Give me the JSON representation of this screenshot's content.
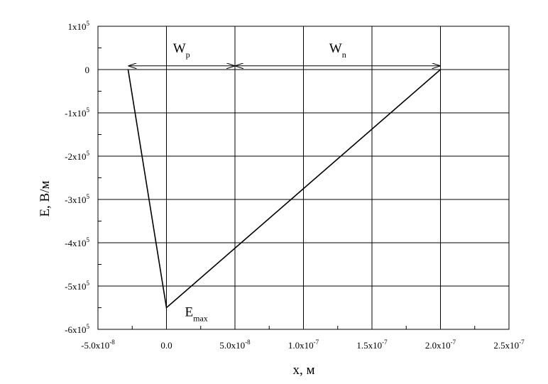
{
  "chart_data": {
    "type": "line",
    "title": "",
    "xlabel": "x, м",
    "ylabel": "E, В/м",
    "xlim": [
      -5e-08,
      2.5e-07
    ],
    "ylim": [
      -600000,
      100000
    ],
    "grid": true,
    "x_ticks": [
      {
        "value": -5e-08,
        "mantissa": "-5.0x10",
        "exp": "-8"
      },
      {
        "value": 0,
        "mantissa": "0.0",
        "exp": ""
      },
      {
        "value": 5e-08,
        "mantissa": "5.0x10",
        "exp": "-8"
      },
      {
        "value": 1e-07,
        "mantissa": "1.0x10",
        "exp": "-7"
      },
      {
        "value": 1.5e-07,
        "mantissa": "1.5x10",
        "exp": "-7"
      },
      {
        "value": 2e-07,
        "mantissa": "2.0x10",
        "exp": "-7"
      },
      {
        "value": 2.5e-07,
        "mantissa": "2.5x10",
        "exp": "-7"
      }
    ],
    "y_ticks": [
      {
        "value": 100000,
        "mantissa": "1x10",
        "exp": "5"
      },
      {
        "value": 0,
        "mantissa": "0",
        "exp": ""
      },
      {
        "value": -100000,
        "mantissa": "-1x10",
        "exp": "5"
      },
      {
        "value": -200000,
        "mantissa": "-2x10",
        "exp": "5"
      },
      {
        "value": -300000,
        "mantissa": "-3x10",
        "exp": "5"
      },
      {
        "value": -400000,
        "mantissa": "-4x10",
        "exp": "5"
      },
      {
        "value": -500000,
        "mantissa": "-5x10",
        "exp": "5"
      },
      {
        "value": -600000,
        "mantissa": "-6x10",
        "exp": "5"
      }
    ],
    "series": [
      {
        "x": [
          -2.8e-08,
          0,
          2e-07
        ],
        "y": [
          0,
          -550000,
          0
        ]
      }
    ],
    "annotations": [
      {
        "id": "wp",
        "main": "W",
        "sub": "p",
        "from": -2.8e-08,
        "to": 5e-08,
        "y": 20000
      },
      {
        "id": "wn",
        "main": "W",
        "sub": "n",
        "from": 5e-08,
        "to": 2e-07,
        "y": 20000
      },
      {
        "id": "emax",
        "main": "E",
        "sub": "max",
        "x": 0,
        "y": -550000
      }
    ]
  }
}
